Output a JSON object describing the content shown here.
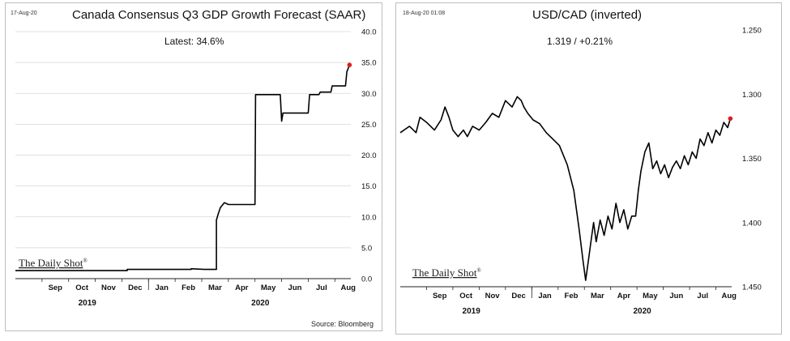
{
  "colors": {
    "line": "#000000",
    "latest_marker": "#e01b1b",
    "grid": "#d6d6d6"
  },
  "left": {
    "datestamp": "17-Aug-20",
    "title": "Canada Consensus Q3 GDP Growth Forecast (SAAR)",
    "latest": "Latest:  34.6%",
    "source": "Source: Bloomberg",
    "watermark": "The Daily Shot",
    "watermark_mark": "®"
  },
  "right": {
    "datestamp": "18-Aug-20 01:08",
    "title": "USD/CAD (inverted)",
    "latest": "1.319  /  +0.21%",
    "watermark": "The Daily Shot",
    "watermark_mark": "®"
  },
  "chart_data": [
    {
      "type": "line",
      "title": "Canada Consensus Q3 GDP Growth Forecast (SAAR)",
      "annotation": "Latest:  34.6%",
      "x_unit": "months since Aug 2019",
      "xlim": [
        0,
        12.6
      ],
      "ylim": [
        0,
        40
      ],
      "y_ticks": [
        "0.0",
        "5.0",
        "10.0",
        "15.0",
        "20.0",
        "25.0",
        "30.0",
        "35.0",
        "40.0"
      ],
      "month_labels": [
        "Sep",
        "Oct",
        "Nov",
        "Dec",
        "Jan",
        "Feb",
        "Mar",
        "Apr",
        "May",
        "Jun",
        "Jul",
        "Aug"
      ],
      "year_labels": [
        "2019",
        "2020"
      ],
      "series": [
        {
          "x": [
            0,
            4.2,
            4.2,
            6.6,
            6.6,
            7.1,
            7.55,
            7.55,
            7.62,
            7.7,
            7.85,
            8.0,
            8.05,
            9.0,
            9.02,
            9.95,
            10.0,
            10.05,
            10.15,
            11.0,
            11.05,
            11.4,
            11.45,
            11.85,
            11.9,
            12.4,
            12.45,
            12.55
          ],
          "y": [
            1.3,
            1.3,
            1.5,
            1.5,
            1.6,
            1.5,
            1.5,
            9.5,
            10.5,
            11.5,
            12.3,
            12.0,
            12.0,
            12.0,
            29.8,
            29.8,
            25.5,
            26.8,
            26.8,
            26.8,
            29.8,
            29.8,
            30.2,
            30.2,
            31.2,
            31.2,
            33.5,
            34.6
          ]
        }
      ],
      "latest_point": {
        "x": 12.55,
        "y": 34.6
      },
      "grid": "horizontal"
    },
    {
      "type": "line",
      "title": "USD/CAD (inverted)",
      "annotation": "1.319  /  +0.21%",
      "x_unit": "months since Aug 2019",
      "xlim": [
        0,
        12.6
      ],
      "ylim": [
        1.25,
        1.45
      ],
      "y_inverted": true,
      "y_ticks": [
        "1.250",
        "1.300",
        "1.350",
        "1.400",
        "1.450"
      ],
      "month_labels": [
        "Sep",
        "Oct",
        "Nov",
        "Dec",
        "Jan",
        "Feb",
        "Mar",
        "Apr",
        "May",
        "Jun",
        "Jul",
        "Aug"
      ],
      "year_labels": [
        "2019",
        "2020"
      ],
      "series": [
        {
          "x": [
            0,
            0.35,
            0.6,
            0.75,
            1.0,
            1.3,
            1.55,
            1.7,
            1.85,
            2.0,
            2.2,
            2.4,
            2.55,
            2.75,
            3.0,
            3.25,
            3.5,
            3.75,
            4.0,
            4.25,
            4.45,
            4.6,
            4.7,
            4.85,
            5.05,
            5.3,
            5.55,
            5.8,
            6.05,
            6.35,
            6.6,
            6.8,
            6.95,
            7.05,
            7.15,
            7.25,
            7.35,
            7.45,
            7.6,
            7.75,
            7.9,
            8.05,
            8.2,
            8.35,
            8.5,
            8.65,
            8.8,
            8.95,
            9.05,
            9.15,
            9.3,
            9.45,
            9.6,
            9.75,
            9.9,
            10.05,
            10.2,
            10.35,
            10.5,
            10.65,
            10.8,
            10.95,
            11.1,
            11.25,
            11.4,
            11.55,
            11.7,
            11.85,
            12.0,
            12.15,
            12.3,
            12.45,
            12.55
          ],
          "y": [
            1.33,
            1.325,
            1.33,
            1.318,
            1.322,
            1.328,
            1.32,
            1.31,
            1.318,
            1.328,
            1.333,
            1.328,
            1.333,
            1.325,
            1.328,
            1.322,
            1.315,
            1.318,
            1.305,
            1.31,
            1.302,
            1.305,
            1.31,
            1.315,
            1.32,
            1.323,
            1.33,
            1.335,
            1.34,
            1.355,
            1.375,
            1.405,
            1.43,
            1.445,
            1.43,
            1.415,
            1.4,
            1.415,
            1.398,
            1.41,
            1.395,
            1.405,
            1.385,
            1.4,
            1.39,
            1.405,
            1.395,
            1.395,
            1.375,
            1.36,
            1.345,
            1.338,
            1.358,
            1.352,
            1.362,
            1.355,
            1.365,
            1.357,
            1.352,
            1.358,
            1.348,
            1.355,
            1.345,
            1.35,
            1.335,
            1.34,
            1.33,
            1.338,
            1.328,
            1.332,
            1.322,
            1.326,
            1.319
          ]
        }
      ],
      "latest_point": {
        "x": 12.55,
        "y": 1.319
      },
      "grid": "none"
    }
  ]
}
